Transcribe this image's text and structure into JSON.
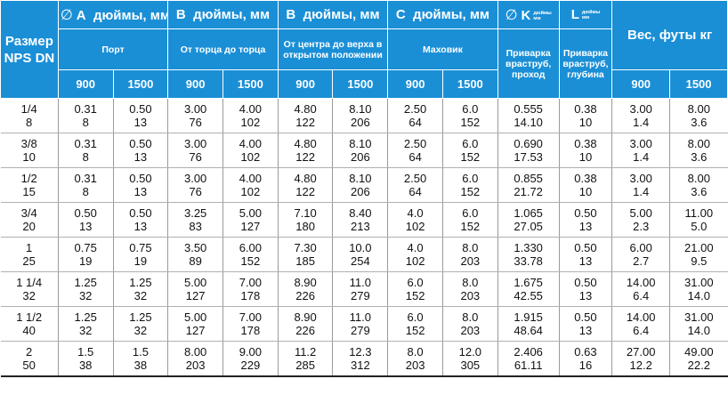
{
  "header": {
    "size": "Размер NPS DN",
    "weight": "Вес, футы кг",
    "groups": {
      "A": {
        "symbol": "∅",
        "letter": "A",
        "units": "дюймы, мм",
        "sub": "Порт"
      },
      "B1": {
        "letter": "B",
        "units": "дюймы, мм",
        "sub": "От торца до торца"
      },
      "B2": {
        "letter": "B",
        "units": "дюймы, мм",
        "sub": "От центра до верха в открытом положении"
      },
      "C": {
        "letter": "C",
        "units": "дюймы, мм",
        "sub": "Маховик"
      },
      "K": {
        "symbol": "∅",
        "letter": "K",
        "units_line1": "дюймы",
        "units_line2": "мм",
        "sub": "Приварка враструб, проход"
      },
      "L": {
        "letter": "L",
        "units_line1": "дюймы",
        "units_line2": "мм",
        "sub": "Приварка враструб, глубина"
      }
    },
    "classes": {
      "c900": "900",
      "c1500": "1500"
    }
  },
  "rows": [
    {
      "nps": "1/4",
      "dn": "8",
      "a900": [
        "0.31",
        "8"
      ],
      "a1500": [
        "0.50",
        "13"
      ],
      "bf900": [
        "3.00",
        "76"
      ],
      "bf1500": [
        "4.00",
        "102"
      ],
      "bc900": [
        "4.80",
        "122"
      ],
      "bc1500": [
        "8.10",
        "206"
      ],
      "c900": [
        "2.50",
        "64"
      ],
      "c1500": [
        "6.0",
        "152"
      ],
      "k": [
        "0.555",
        "14.10"
      ],
      "l": [
        "0.38",
        "10"
      ],
      "w900": [
        "3.00",
        "1.4"
      ],
      "w1500": [
        "8.00",
        "3.6"
      ]
    },
    {
      "nps": "3/8",
      "dn": "10",
      "a900": [
        "0.31",
        "8"
      ],
      "a1500": [
        "0.50",
        "13"
      ],
      "bf900": [
        "3.00",
        "76"
      ],
      "bf1500": [
        "4.00",
        "102"
      ],
      "bc900": [
        "4.80",
        "122"
      ],
      "bc1500": [
        "8.10",
        "206"
      ],
      "c900": [
        "2.50",
        "64"
      ],
      "c1500": [
        "6.0",
        "152"
      ],
      "k": [
        "0.690",
        "17.53"
      ],
      "l": [
        "0.38",
        "10"
      ],
      "w900": [
        "3.00",
        "1.4"
      ],
      "w1500": [
        "8.00",
        "3.6"
      ]
    },
    {
      "nps": "1/2",
      "dn": "15",
      "a900": [
        "0.31",
        "8"
      ],
      "a1500": [
        "0.50",
        "13"
      ],
      "bf900": [
        "3.00",
        "76"
      ],
      "bf1500": [
        "4.00",
        "102"
      ],
      "bc900": [
        "4.80",
        "122"
      ],
      "bc1500": [
        "8.10",
        "206"
      ],
      "c900": [
        "2.50",
        "64"
      ],
      "c1500": [
        "6.0",
        "152"
      ],
      "k": [
        "0.855",
        "21.72"
      ],
      "l": [
        "0.38",
        "10"
      ],
      "w900": [
        "3.00",
        "1.4"
      ],
      "w1500": [
        "8.00",
        "3.6"
      ]
    },
    {
      "nps": "3/4",
      "dn": "20",
      "a900": [
        "0.50",
        "13"
      ],
      "a1500": [
        "0.50",
        "13"
      ],
      "bf900": [
        "3.25",
        "83"
      ],
      "bf1500": [
        "5.00",
        "127"
      ],
      "bc900": [
        "7.10",
        "180"
      ],
      "bc1500": [
        "8.40",
        "213"
      ],
      "c900": [
        "4.0",
        "102"
      ],
      "c1500": [
        "6.0",
        "152"
      ],
      "k": [
        "1.065",
        "27.05"
      ],
      "l": [
        "0.50",
        "13"
      ],
      "w900": [
        "5.00",
        "2.3"
      ],
      "w1500": [
        "11.00",
        "5.0"
      ]
    },
    {
      "nps": "1",
      "dn": "25",
      "a900": [
        "0.75",
        "19"
      ],
      "a1500": [
        "0.75",
        "19"
      ],
      "bf900": [
        "3.50",
        "89"
      ],
      "bf1500": [
        "6.00",
        "152"
      ],
      "bc900": [
        "7.30",
        "185"
      ],
      "bc1500": [
        "10.0",
        "254"
      ],
      "c900": [
        "4.0",
        "102"
      ],
      "c1500": [
        "8.0",
        "203"
      ],
      "k": [
        "1.330",
        "33.78"
      ],
      "l": [
        "0.50",
        "13"
      ],
      "w900": [
        "6.00",
        "2.7"
      ],
      "w1500": [
        "21.00",
        "9.5"
      ]
    },
    {
      "nps": "1 1/4",
      "dn": "32",
      "a900": [
        "1.25",
        "32"
      ],
      "a1500": [
        "1.25",
        "32"
      ],
      "bf900": [
        "5.00",
        "127"
      ],
      "bf1500": [
        "7.00",
        "178"
      ],
      "bc900": [
        "8.90",
        "226"
      ],
      "bc1500": [
        "11.0",
        "279"
      ],
      "c900": [
        "6.0",
        "152"
      ],
      "c1500": [
        "8.0",
        "203"
      ],
      "k": [
        "1.675",
        "42.55"
      ],
      "l": [
        "0.50",
        "13"
      ],
      "w900": [
        "14.00",
        "6.4"
      ],
      "w1500": [
        "31.00",
        "14.0"
      ]
    },
    {
      "nps": "1 1/2",
      "dn": "40",
      "a900": [
        "1.25",
        "32"
      ],
      "a1500": [
        "1.25",
        "32"
      ],
      "bf900": [
        "5.00",
        "127"
      ],
      "bf1500": [
        "7.00",
        "178"
      ],
      "bc900": [
        "8.90",
        "226"
      ],
      "bc1500": [
        "11.0",
        "279"
      ],
      "c900": [
        "6.0",
        "152"
      ],
      "c1500": [
        "8.0",
        "203"
      ],
      "k": [
        "1.915",
        "48.64"
      ],
      "l": [
        "0.50",
        "13"
      ],
      "w900": [
        "14.00",
        "6.4"
      ],
      "w1500": [
        "31.00",
        "14.0"
      ]
    },
    {
      "nps": "2",
      "dn": "50",
      "a900": [
        "1.5",
        "38"
      ],
      "a1500": [
        "1.5",
        "38"
      ],
      "bf900": [
        "8.00",
        "203"
      ],
      "bf1500": [
        "9.00",
        "229"
      ],
      "bc900": [
        "11.2",
        "285"
      ],
      "bc1500": [
        "12.3",
        "312"
      ],
      "c900": [
        "8.0",
        "203"
      ],
      "c1500": [
        "12.0",
        "305"
      ],
      "k": [
        "2.406",
        "61.11"
      ],
      "l": [
        "0.63",
        "16"
      ],
      "w900": [
        "27.00",
        "12.2"
      ],
      "w1500": [
        "49.00",
        "22.2"
      ]
    }
  ]
}
